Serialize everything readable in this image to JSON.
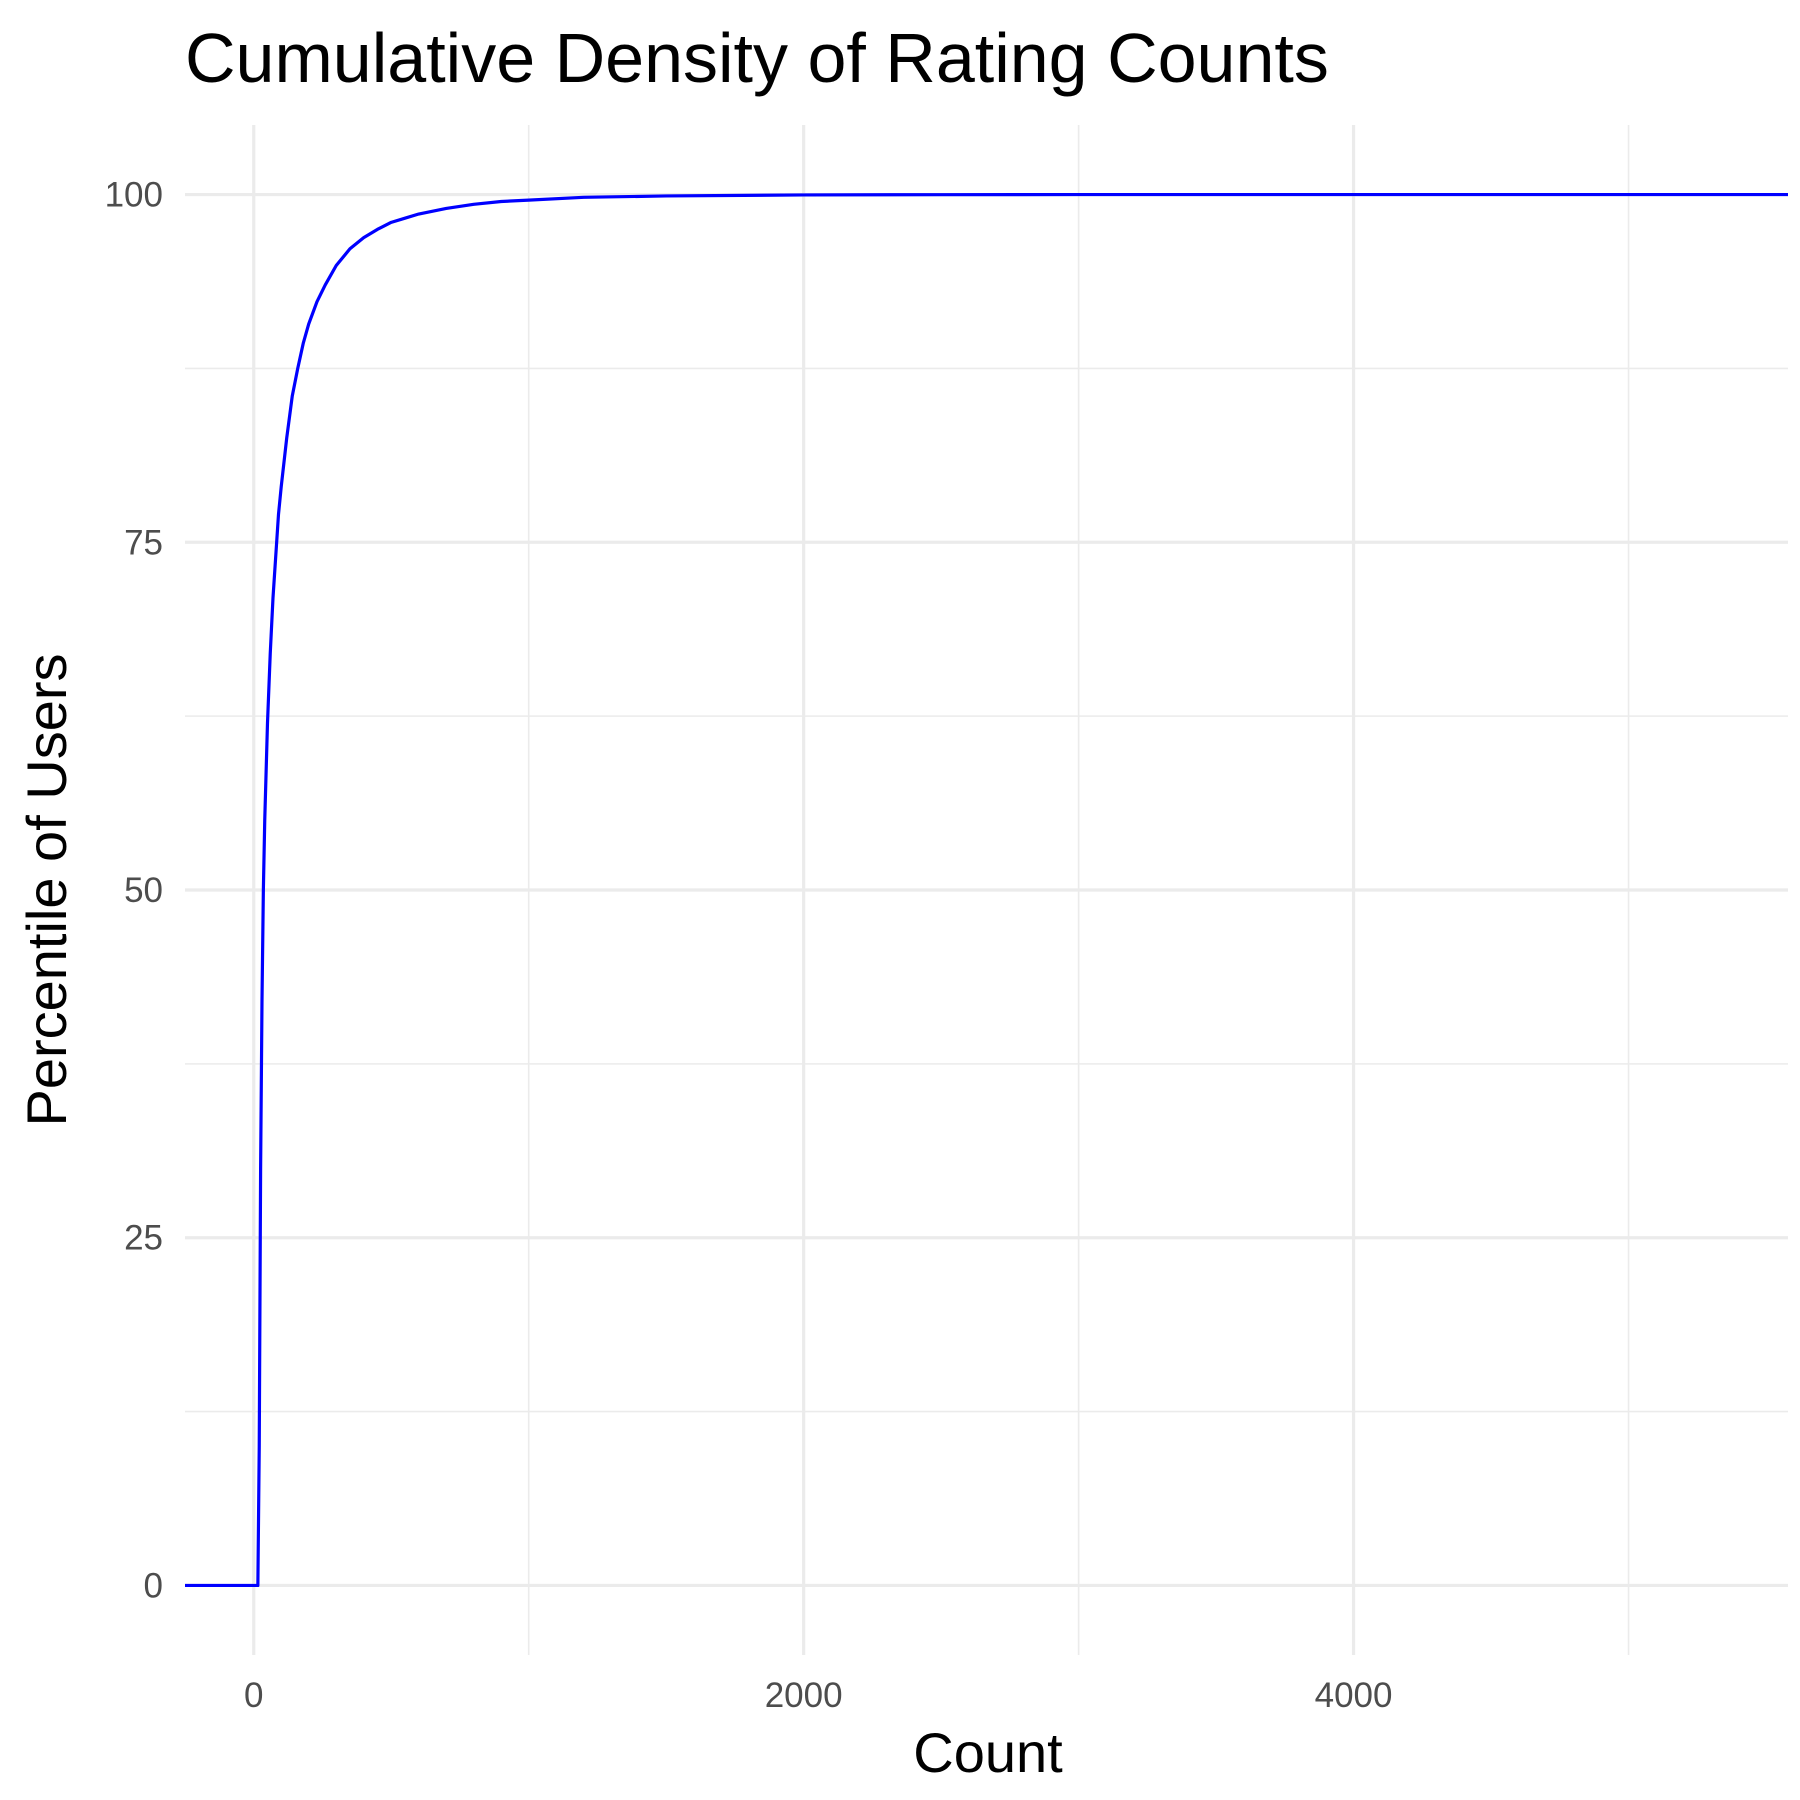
{
  "chart_data": {
    "type": "line",
    "title": "Cumulative Density of Rating Counts",
    "xlabel": "Count",
    "ylabel": "Percentile of Users",
    "xlim": [
      -250,
      5580
    ],
    "ylim": [
      -5,
      105
    ],
    "x_ticks": [
      0,
      2000,
      4000
    ],
    "x_tick_labels": [
      "0",
      "2000",
      "4000"
    ],
    "x_minor_ticks": [
      1000,
      3000,
      5000
    ],
    "y_ticks": [
      0,
      25,
      50,
      75,
      100
    ],
    "y_tick_labels": [
      "0",
      "25",
      "50",
      "75",
      "100"
    ],
    "y_minor_ticks": [
      12.5,
      37.5,
      62.5,
      87.5
    ],
    "grid": true,
    "legend": "none",
    "series": [
      {
        "color": "#0000ff",
        "x": [
          -250,
          15,
          20,
          25,
          30,
          35,
          40,
          50,
          60,
          70,
          80,
          90,
          100,
          120,
          140,
          160,
          180,
          200,
          230,
          260,
          300,
          350,
          400,
          450,
          500,
          550,
          600,
          700,
          800,
          900,
          1000,
          1200,
          1500,
          2000,
          2500,
          3000,
          4000,
          5000,
          5580
        ],
        "y": [
          0,
          0,
          10,
          30,
          42,
          50,
          55,
          62,
          67,
          71,
          74,
          77,
          79,
          82.5,
          85.5,
          87.5,
          89.3,
          90.7,
          92.3,
          93.5,
          94.9,
          96.1,
          96.9,
          97.5,
          98.0,
          98.3,
          98.6,
          99.0,
          99.3,
          99.5,
          99.6,
          99.8,
          99.9,
          99.97,
          99.99,
          100,
          100,
          100,
          100
        ]
      }
    ]
  }
}
